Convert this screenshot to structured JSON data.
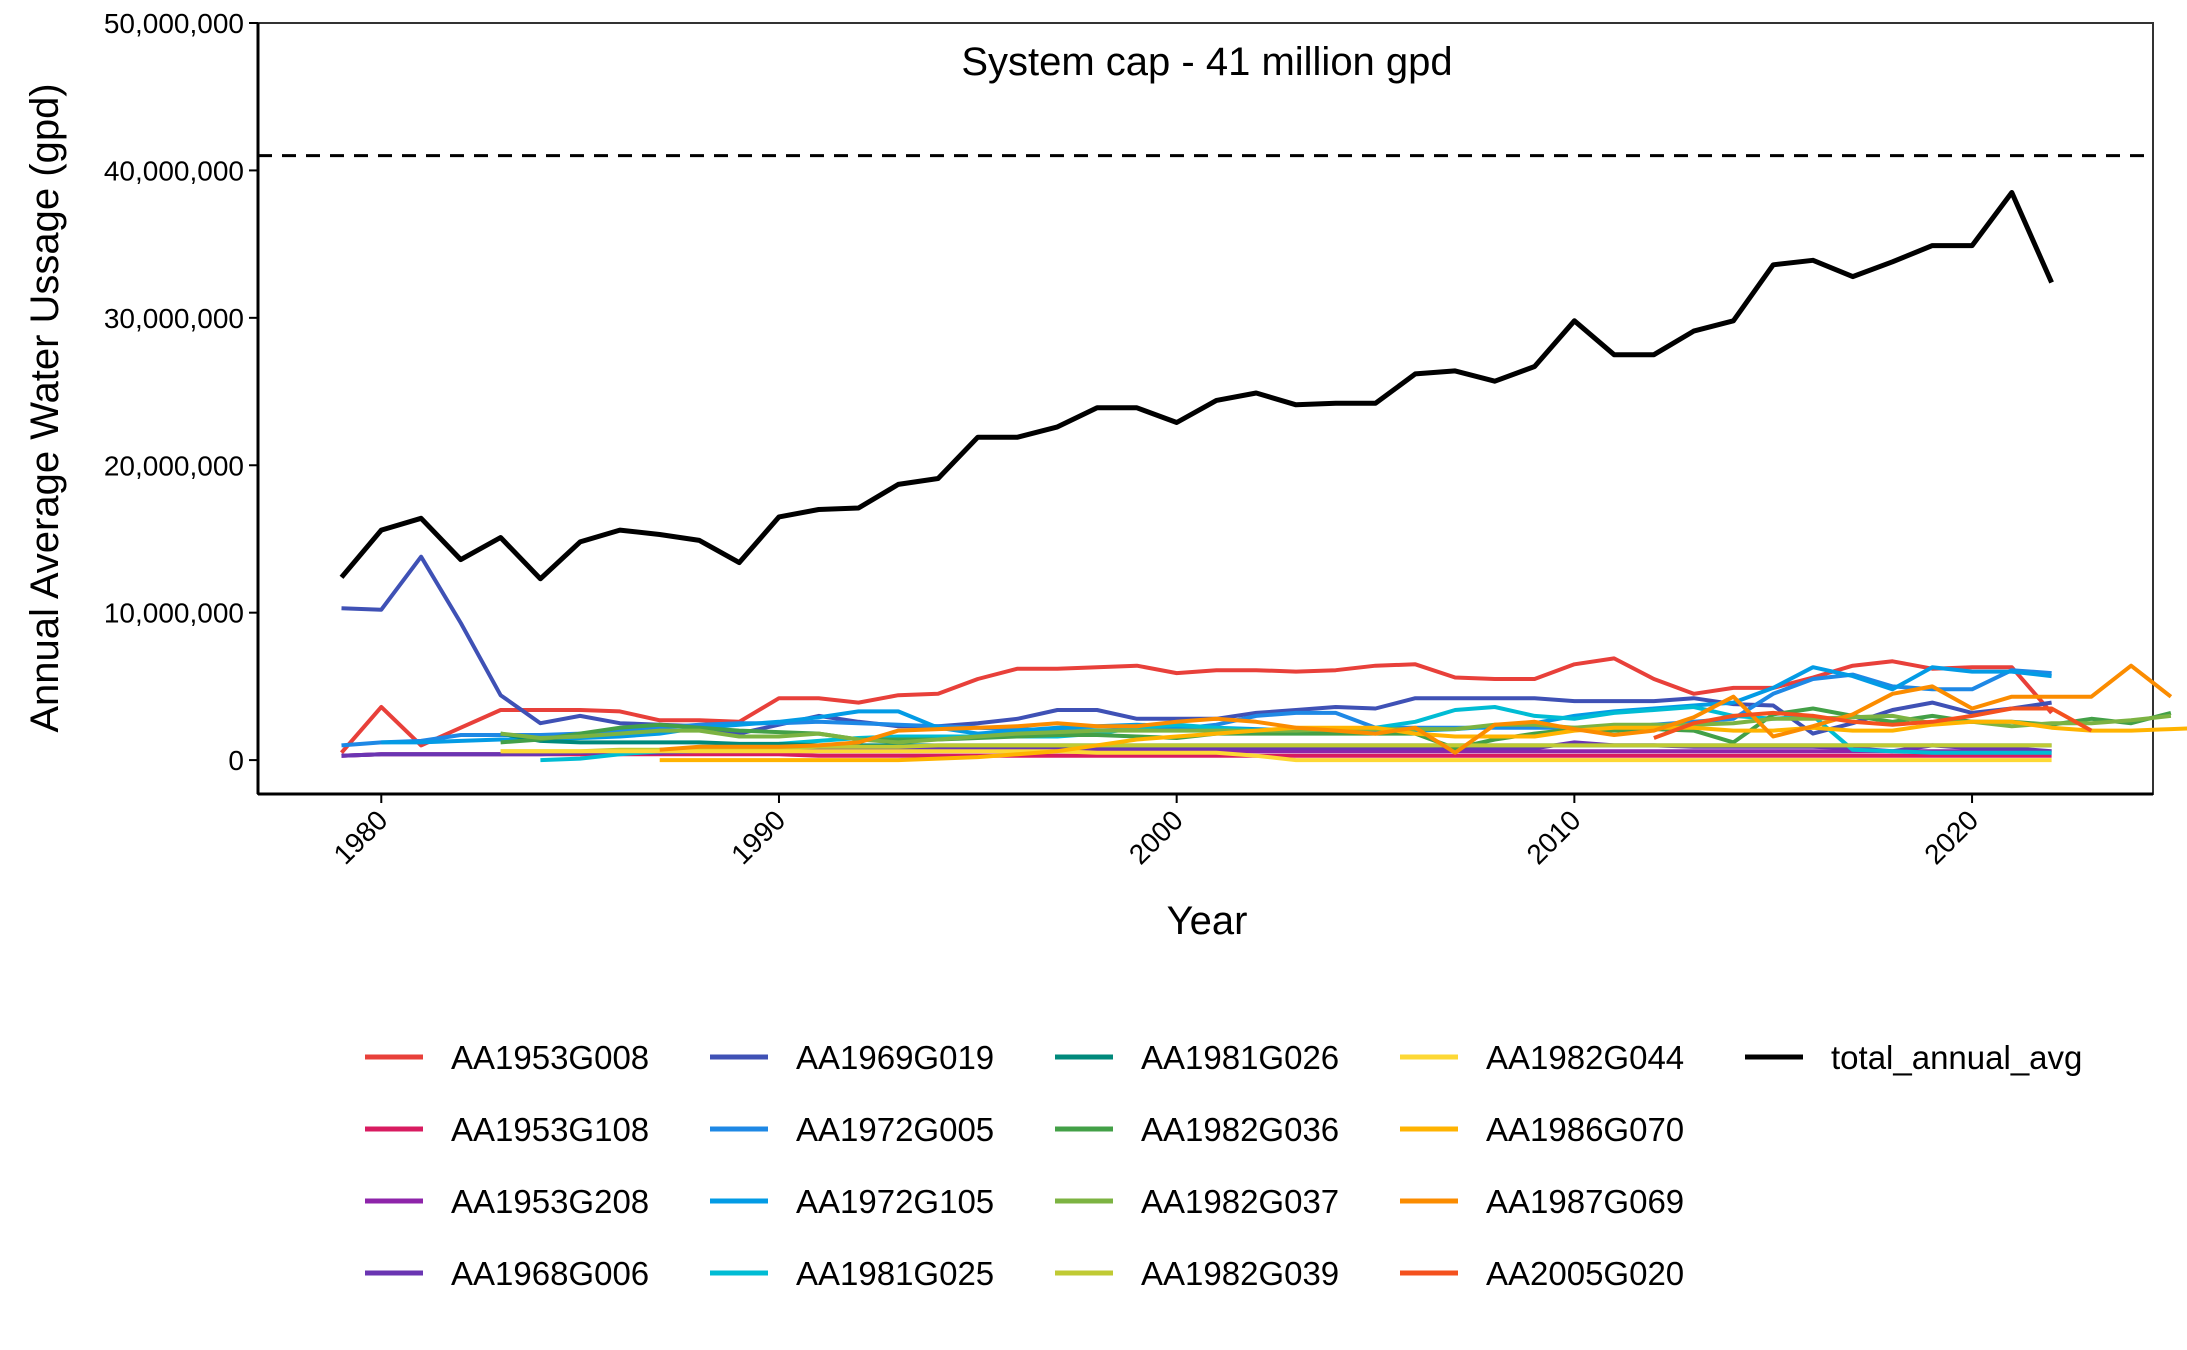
{
  "chart_data": {
    "type": "line",
    "title": "",
    "annotation": "System cap - 41 million gpd",
    "reference_line": {
      "y": 41000000,
      "style": "dashed",
      "color": "#000000"
    },
    "xlabel": "Year",
    "ylabel": "Annual Average Water Ussage (gpd)",
    "xlim": [
      1976.9,
      1991.0
    ],
    "ylim": [
      -2300000,
      50000000
    ],
    "x_ticks": [
      1980,
      1990,
      2000,
      2010,
      2020
    ],
    "x_tick_labels": [
      "1980",
      "1990",
      "2000",
      "2010",
      "2020"
    ],
    "y_ticks": [
      0,
      10000000,
      20000000,
      30000000,
      40000000,
      50000000
    ],
    "y_tick_labels": [
      "0",
      "10,000,000",
      "20,000,000",
      "30,000,000",
      "40,000,000",
      "50,000,000"
    ],
    "grid": false,
    "legend_position": "bottom",
    "series": [
      {
        "name": "AA1953G008",
        "color": "#E8403A",
        "x0": 1979,
        "values": [
          0.5,
          3.6,
          1.0,
          2.2,
          3.4,
          3.4,
          3.4,
          3.3,
          2.7,
          2.7,
          2.6,
          4.2,
          4.2,
          3.9,
          4.4,
          4.5,
          5.5,
          6.2,
          6.2,
          6.3,
          6.4,
          5.9,
          6.1,
          6.1,
          6.0,
          6.1,
          6.4,
          6.5,
          5.6,
          5.5,
          5.5,
          6.5,
          6.9,
          5.5,
          4.5,
          4.9,
          4.9,
          5.6,
          6.4,
          6.7,
          6.2,
          6.3,
          6.3,
          3.2
        ]
      },
      {
        "name": "AA1953G108",
        "color": "#D81B60",
        "x0": 1979,
        "values": [
          0.3,
          0.4,
          0.4,
          0.4,
          0.4,
          0.4,
          0.4,
          0.4,
          0.4,
          0.4,
          0.4,
          0.4,
          0.3,
          0.3,
          0.3,
          0.3,
          0.3,
          0.3,
          0.3,
          0.3,
          0.3,
          0.3,
          0.3,
          0.3,
          0.3,
          0.3,
          0.3,
          0.3,
          0.3,
          0.3,
          0.3,
          0.3,
          0.3,
          0.3,
          0.3,
          0.3,
          0.3,
          0.3,
          0.3,
          0.3,
          0.3,
          0.3,
          0.3,
          0.3
        ]
      },
      {
        "name": "AA1953G208",
        "color": "#8E24AA",
        "x0": 1979,
        "values": [
          0.3,
          0.4,
          0.4,
          0.4,
          0.4,
          0.5,
          0.5,
          0.5,
          0.5,
          0.6,
          0.6,
          0.6,
          0.6,
          0.6,
          0.6,
          0.6,
          0.6,
          0.6,
          0.6,
          0.6,
          0.6,
          0.6,
          0.6,
          0.6,
          0.6,
          0.6,
          0.6,
          0.6,
          0.6,
          0.6,
          0.6,
          0.6,
          0.6,
          0.6,
          0.6,
          0.6,
          0.6,
          0.6,
          0.6,
          0.6,
          0.6,
          0.6,
          0.6,
          0.5
        ]
      },
      {
        "name": "AA1968G006",
        "color": "#6A35B2",
        "x0": 1979,
        "values": [
          0.3,
          0.4,
          0.4,
          0.4,
          0.4,
          0.4,
          0.5,
          0.5,
          0.5,
          0.6,
          0.6,
          0.7,
          0.7,
          0.7,
          0.8,
          0.8,
          0.8,
          0.8,
          0.8,
          0.8,
          0.8,
          0.8,
          0.8,
          0.8,
          0.8,
          0.8,
          0.8,
          0.8,
          0.8,
          0.8,
          0.8,
          1.2,
          1.0,
          1.0,
          0.9,
          0.9,
          0.9,
          0.9,
          0.8,
          0.6,
          1.0,
          0.8,
          0.8,
          0.6
        ]
      },
      {
        "name": "AA1969G019",
        "color": "#3F51B5",
        "x0": 1979,
        "values": [
          10.3,
          10.2,
          13.8,
          9.3,
          4.4,
          2.5,
          3.0,
          2.5,
          2.4,
          2.3,
          1.8,
          2.4,
          3.0,
          2.6,
          2.3,
          2.3,
          2.5,
          2.8,
          3.4,
          3.4,
          2.8,
          2.8,
          2.8,
          3.2,
          3.4,
          3.6,
          3.5,
          4.2,
          4.2,
          4.2,
          4.2,
          4.0,
          4.0,
          4.0,
          4.2,
          3.8,
          3.7,
          1.8,
          2.5,
          3.4,
          3.9,
          3.2,
          3.5,
          3.9
        ]
      },
      {
        "name": "AA1972G005",
        "color": "#1E88E5",
        "x0": 1979,
        "values": [
          1.0,
          1.2,
          1.3,
          1.7,
          1.7,
          1.7,
          1.8,
          2.0,
          2.2,
          2.4,
          2.5,
          2.5,
          2.6,
          2.5,
          2.4,
          2.3,
          2.2,
          2.1,
          2.0,
          2.0,
          2.1,
          2.1,
          2.4,
          3.0,
          3.2,
          3.2,
          2.2,
          2.2,
          2.2,
          2.2,
          2.2,
          2.2,
          2.2,
          2.4,
          2.6,
          2.8,
          4.5,
          5.5,
          5.8,
          5.0,
          4.8,
          4.8,
          6.1,
          5.9
        ]
      },
      {
        "name": "AA1972G105",
        "color": "#039BE5",
        "x0": 1980,
        "values": [
          1.2,
          1.2,
          1.3,
          1.4,
          1.4,
          1.5,
          1.6,
          1.8,
          2.2,
          2.4,
          2.6,
          2.9,
          3.3,
          3.3,
          2.2,
          1.8,
          2.0,
          2.2,
          2.3,
          2.4,
          2.3,
          2.2,
          2.1,
          2.0,
          2.0,
          2.0,
          2.0,
          2.1,
          2.3,
          2.5,
          3.0,
          3.3,
          3.5,
          3.7,
          3.9,
          4.9,
          6.3,
          5.7,
          4.8,
          6.3,
          6.0,
          6.0,
          5.7
        ]
      },
      {
        "name": "AA1981G025",
        "color": "#00BCD4",
        "x0": 1984,
        "values": [
          0.0,
          0.1,
          0.4,
          0.6,
          0.8,
          1.0,
          1.1,
          1.3,
          1.5,
          1.6,
          1.6,
          1.6,
          1.6,
          1.6,
          1.8,
          2.2,
          2.4,
          2.2,
          2.0,
          2.0,
          2.0,
          2.2,
          2.6,
          3.4,
          3.6,
          3.0,
          2.8,
          3.2,
          3.4,
          3.6,
          3.0,
          2.8,
          3.0,
          0.7,
          0.6,
          0.5,
          0.5,
          0.5,
          0.5
        ]
      },
      {
        "name": "AA1981G026",
        "color": "#00897B",
        "x0": 1983,
        "values": [
          1.8,
          1.3,
          1.2,
          1.2,
          1.2,
          1.2,
          1.1,
          1.1,
          1.0,
          1.0,
          1.0,
          1.0,
          1.0,
          1.0,
          1.0,
          1.0,
          1.0,
          1.0,
          1.0,
          1.0,
          1.0,
          1.0,
          1.0,
          1.0,
          1.0,
          1.0,
          1.0,
          1.0,
          1.0,
          1.0,
          1.0,
          1.0,
          1.0,
          1.0,
          1.0,
          1.0,
          1.0,
          1.0,
          1.0,
          1.0
        ]
      },
      {
        "name": "AA1982G036",
        "color": "#43A047",
        "x0": 1983,
        "values": [
          1.2,
          1.4,
          1.8,
          2.2,
          2.4,
          2.2,
          2.0,
          1.9,
          1.8,
          1.4,
          1.4,
          1.4,
          1.5,
          1.6,
          1.7,
          1.7,
          1.6,
          1.5,
          1.8,
          1.8,
          1.8,
          1.8,
          1.8,
          1.8,
          0.8,
          1.4,
          1.8,
          2.1,
          2.0,
          2.1,
          2.0,
          1.2,
          3.1,
          3.5,
          3.0,
          2.6,
          3.0,
          2.6,
          2.6,
          2.4,
          2.8,
          2.5,
          3.2
        ]
      },
      {
        "name": "AA1982G037",
        "color": "#7CB342",
        "x0": 1983,
        "values": [
          1.8,
          1.5,
          1.6,
          1.8,
          2.0,
          2.0,
          1.6,
          1.6,
          1.8,
          1.4,
          1.2,
          1.4,
          1.6,
          1.8,
          1.9,
          2.0,
          2.0,
          2.0,
          2.0,
          2.0,
          2.0,
          2.1,
          2.1,
          2.1,
          2.1,
          2.4,
          2.4,
          2.2,
          2.4,
          2.4,
          2.4,
          2.5,
          2.8,
          2.8,
          2.9,
          3.0,
          2.5,
          2.6,
          2.3,
          2.5,
          2.5,
          2.7,
          3.0
        ]
      },
      {
        "name": "AA1982G039",
        "color": "#C0CA33",
        "x0": 1983,
        "values": [
          0.6,
          0.6,
          0.6,
          0.7,
          0.7,
          0.8,
          0.8,
          0.8,
          0.9,
          0.9,
          0.9,
          1.0,
          1.0,
          1.0,
          1.0,
          1.0,
          1.0,
          1.0,
          1.0,
          1.0,
          1.0,
          1.0,
          1.0,
          1.0,
          1.0,
          1.0,
          1.0,
          1.0,
          1.0,
          1.0,
          1.0,
          1.0,
          1.0,
          1.0,
          1.0,
          1.0,
          1.0,
          1.0,
          1.0,
          1.0
        ]
      },
      {
        "name": "AA1982G044",
        "color": "#FDD835",
        "x0": 1983,
        "values": [
          0.6,
          0.6,
          0.6,
          0.6,
          0.6,
          0.6,
          0.6,
          0.6,
          0.6,
          0.6,
          0.6,
          0.6,
          0.6,
          0.6,
          0.6,
          0.5,
          0.5,
          0.5,
          0.5,
          0.3,
          0.0,
          0.0,
          0.0,
          0.0,
          0.0,
          0.0,
          0.0,
          0.0,
          0.0,
          0.0,
          0.0,
          0.0,
          0.0,
          0.0,
          0.0,
          0.0,
          0.0,
          0.0,
          0.0,
          0.0
        ]
      },
      {
        "name": "AA1986G070",
        "color": "#FFB300",
        "x0": 1987,
        "values": [
          0.0,
          0.0,
          0.0,
          0.0,
          0.0,
          0.0,
          0.0,
          0.1,
          0.2,
          0.4,
          0.6,
          1.0,
          1.4,
          1.6,
          1.8,
          2.0,
          2.2,
          2.2,
          2.2,
          1.8,
          1.6,
          1.6,
          1.6,
          2.0,
          2.2,
          2.2,
          2.2,
          2.0,
          2.0,
          2.2,
          2.0,
          2.0,
          2.4,
          2.6,
          2.6,
          2.2,
          2.0,
          2.0,
          2.1,
          2.2
        ]
      },
      {
        "name": "AA1987G069",
        "color": "#FB8C00",
        "x0": 1987,
        "values": [
          0.7,
          0.9,
          0.9,
          0.9,
          1.0,
          1.2,
          2.0,
          2.1,
          2.2,
          2.3,
          2.5,
          2.3,
          2.3,
          2.6,
          2.8,
          2.6,
          2.2,
          2.0,
          1.8,
          2.2,
          0.5,
          2.4,
          2.6,
          2.1,
          1.7,
          2.0,
          2.9,
          4.3,
          1.6,
          2.3,
          3.1,
          4.5,
          5.0,
          3.5,
          4.3,
          4.3,
          4.3,
          6.4,
          4.3
        ]
      },
      {
        "name": "AA2005G020",
        "color": "#F4511E",
        "x0": 2012,
        "values": [
          1.5,
          2.5,
          3.0,
          3.2,
          3.0,
          2.6,
          2.4,
          2.6,
          3.0,
          3.5,
          3.5,
          2.0
        ]
      },
      {
        "name": "total_annual_avg",
        "color": "#000000",
        "x0": 1979,
        "values": [
          12.4,
          15.6,
          16.4,
          13.6,
          15.1,
          12.3,
          14.8,
          15.6,
          15.3,
          14.9,
          13.4,
          16.5,
          17.0,
          17.1,
          18.7,
          19.1,
          21.9,
          21.9,
          22.6,
          23.9,
          23.9,
          22.9,
          24.4,
          24.9,
          24.1,
          24.2,
          24.2,
          26.2,
          26.4,
          25.7,
          26.7,
          29.8,
          27.5,
          27.5,
          29.1,
          29.8,
          33.6,
          33.9,
          32.8,
          33.8,
          34.9,
          34.9,
          38.5,
          32.4
        ]
      }
    ],
    "value_unit": "million gpd"
  }
}
